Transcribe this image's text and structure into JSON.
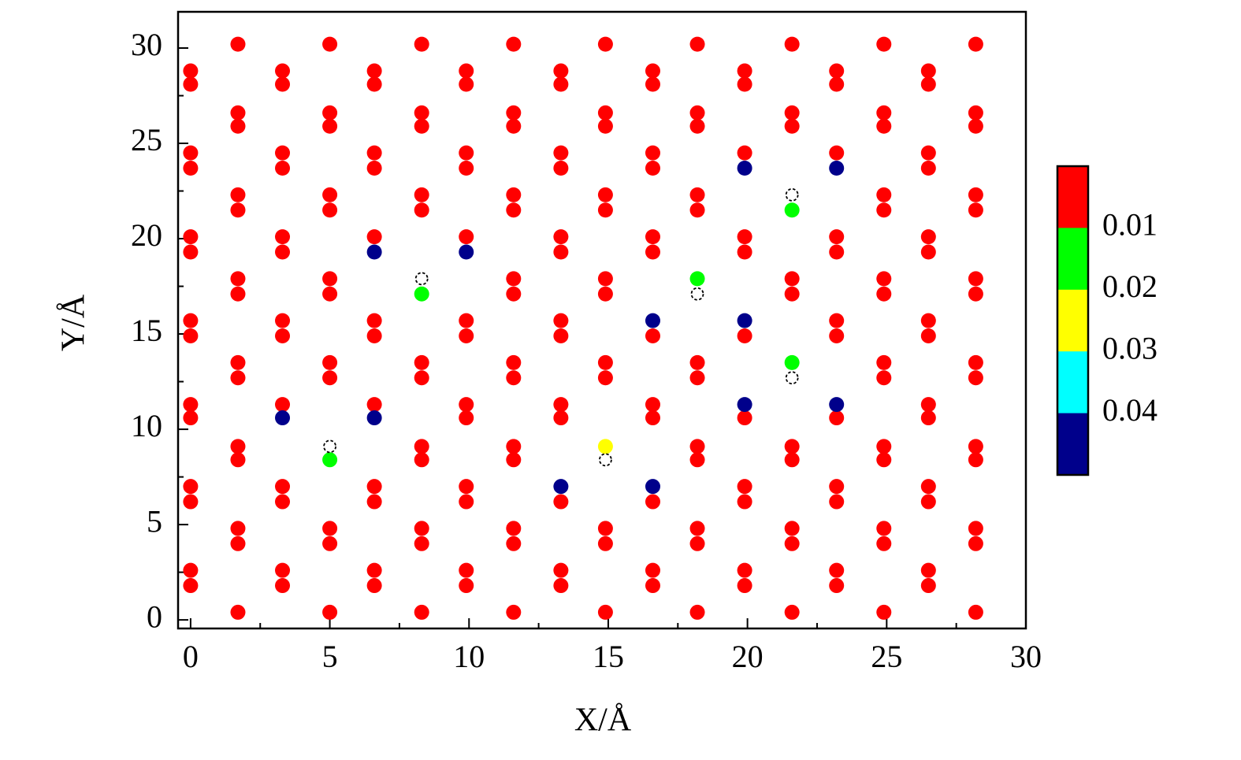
{
  "chart_data": {
    "type": "scatter",
    "xlabel": "X/Å",
    "ylabel": "Y/Å",
    "xlim": [
      -0.45,
      30
    ],
    "ylim": [
      -0.45,
      31.9
    ],
    "xticks": [
      0,
      5,
      10,
      15,
      20,
      25,
      30
    ],
    "yticks": [
      0,
      5,
      10,
      15,
      20,
      25,
      30
    ],
    "xminorticks": [
      2.5,
      7.5,
      12.5,
      17.5,
      22.5,
      27.5
    ],
    "yminorticks": [
      2.5,
      7.5,
      12.5,
      17.5,
      22.5,
      27.5
    ],
    "colorbar": {
      "lim": [
        0,
        0.05
      ],
      "ticks": [
        0.01,
        0.02,
        0.03,
        0.04
      ],
      "colors": [
        "#ff0000",
        "#00ff00",
        "#ffff00",
        "#00ffff",
        "#00008b"
      ]
    },
    "series": [
      {
        "color": "#ff0000",
        "marker": "filled",
        "x": [
          0,
          0,
          0,
          0,
          0,
          0,
          0,
          0,
          0,
          0,
          0,
          0,
          0,
          0,
          1.7,
          1.7,
          1.7,
          1.7,
          1.7,
          1.7,
          1.7,
          1.7,
          1.7,
          1.7,
          1.7,
          1.7,
          1.7,
          1.7,
          3.3,
          3.3,
          3.3,
          3.3,
          3.3,
          3.3,
          3.3,
          3.3,
          3.3,
          3.3,
          3.3,
          3.3,
          3.3,
          5.0,
          5.0,
          5.0,
          5.0,
          5.0,
          5.0,
          5.0,
          5.0,
          5.0,
          5.0,
          5.0,
          5.0,
          6.6,
          6.6,
          6.6,
          6.6,
          6.6,
          6.6,
          6.6,
          6.6,
          6.6,
          6.6,
          6.6,
          6.6,
          8.3,
          8.3,
          8.3,
          8.3,
          8.3,
          8.3,
          8.3,
          8.3,
          8.3,
          8.3,
          8.3,
          8.3,
          9.9,
          9.9,
          9.9,
          9.9,
          9.9,
          9.9,
          9.9,
          9.9,
          9.9,
          9.9,
          9.9,
          9.9,
          9.9,
          11.6,
          11.6,
          11.6,
          11.6,
          11.6,
          11.6,
          11.6,
          11.6,
          11.6,
          11.6,
          11.6,
          11.6,
          11.6,
          11.6,
          13.3,
          13.3,
          13.3,
          13.3,
          13.3,
          13.3,
          13.3,
          13.3,
          13.3,
          13.3,
          13.3,
          13.3,
          13.3,
          14.9,
          14.9,
          14.9,
          14.9,
          14.9,
          14.9,
          14.9,
          14.9,
          14.9,
          14.9,
          14.9,
          14.9,
          16.6,
          16.6,
          16.6,
          16.6,
          16.6,
          16.6,
          16.6,
          16.6,
          16.6,
          16.6,
          16.6,
          16.6,
          18.2,
          18.2,
          18.2,
          18.2,
          18.2,
          18.2,
          18.2,
          18.2,
          18.2,
          18.2,
          18.2,
          18.2,
          19.9,
          19.9,
          19.9,
          19.9,
          19.9,
          19.9,
          19.9,
          19.9,
          19.9,
          19.9,
          19.9,
          21.6,
          21.6,
          21.6,
          21.6,
          21.6,
          21.6,
          21.6,
          21.6,
          21.6,
          21.6,
          23.2,
          23.2,
          23.2,
          23.2,
          23.2,
          23.2,
          23.2,
          23.2,
          23.2,
          23.2,
          23.2,
          23.2,
          24.9,
          24.9,
          24.9,
          24.9,
          24.9,
          24.9,
          24.9,
          24.9,
          24.9,
          24.9,
          24.9,
          24.9,
          24.9,
          24.9,
          26.5,
          26.5,
          26.5,
          26.5,
          26.5,
          26.5,
          26.5,
          26.5,
          26.5,
          26.5,
          26.5,
          26.5,
          26.5,
          26.5,
          28.2,
          28.2,
          28.2,
          28.2,
          28.2,
          28.2,
          28.2,
          28.2,
          28.2,
          28.2,
          28.2,
          28.2,
          28.2,
          28.2
        ],
        "y": [
          28.8,
          28.1,
          24.5,
          23.7,
          20.1,
          19.3,
          15.7,
          14.9,
          11.3,
          10.6,
          7.0,
          6.2,
          2.6,
          1.8,
          30.2,
          26.6,
          25.9,
          22.3,
          21.5,
          17.9,
          17.1,
          13.5,
          12.7,
          9.1,
          8.4,
          4.8,
          4.0,
          0.4,
          28.8,
          28.1,
          24.5,
          23.7,
          20.1,
          19.3,
          15.7,
          14.9,
          11.3,
          7.0,
          6.2,
          2.6,
          1.8,
          30.2,
          26.6,
          25.9,
          22.3,
          21.5,
          17.9,
          17.1,
          13.5,
          12.7,
          4.8,
          4.0,
          0.4,
          28.8,
          28.1,
          24.5,
          23.7,
          20.1,
          15.7,
          14.9,
          11.3,
          7.0,
          6.2,
          2.6,
          1.8,
          30.2,
          26.6,
          25.9,
          22.3,
          21.5,
          13.5,
          12.7,
          9.1,
          8.4,
          4.8,
          4.0,
          0.4,
          28.8,
          28.1,
          24.5,
          23.7,
          20.1,
          15.7,
          14.9,
          11.3,
          10.6,
          7.0,
          6.2,
          2.6,
          1.8,
          30.2,
          26.6,
          25.9,
          22.3,
          21.5,
          17.9,
          17.1,
          13.5,
          12.7,
          9.1,
          8.4,
          4.8,
          4.0,
          0.4,
          28.8,
          28.1,
          24.5,
          23.7,
          20.1,
          19.3,
          15.7,
          14.9,
          11.3,
          10.6,
          6.2,
          2.6,
          1.8,
          30.2,
          26.6,
          25.9,
          22.3,
          21.5,
          17.9,
          17.1,
          13.5,
          12.7,
          4.8,
          4.0,
          0.4,
          28.8,
          28.1,
          24.5,
          23.7,
          20.1,
          19.3,
          14.9,
          11.3,
          10.6,
          6.2,
          2.6,
          1.8,
          30.2,
          26.6,
          25.9,
          22.3,
          21.5,
          13.5,
          12.7,
          9.1,
          8.4,
          4.8,
          4.0,
          0.4,
          28.8,
          28.1,
          24.5,
          20.1,
          19.3,
          14.9,
          10.6,
          7.0,
          6.2,
          2.6,
          1.8,
          30.2,
          26.6,
          25.9,
          17.9,
          17.1,
          9.1,
          8.4,
          4.8,
          4.0,
          0.4,
          28.8,
          28.1,
          24.5,
          20.1,
          19.3,
          15.7,
          14.9,
          10.6,
          7.0,
          6.2,
          2.6,
          1.8,
          30.2,
          26.6,
          25.9,
          22.3,
          21.5,
          17.9,
          17.1,
          13.5,
          12.7,
          9.1,
          8.4,
          4.8,
          4.0,
          0.4,
          28.8,
          28.1,
          24.5,
          23.7,
          20.1,
          19.3,
          15.7,
          14.9,
          11.3,
          10.6,
          7.0,
          6.2,
          2.6,
          1.8,
          30.2,
          26.6,
          25.9,
          22.3,
          21.5,
          17.9,
          17.1,
          13.5,
          12.7,
          9.1,
          8.4,
          4.8,
          4.0,
          0.4
        ]
      },
      {
        "color": "#00008b",
        "marker": "filled",
        "x": [
          19.9,
          23.2,
          6.6,
          9.9,
          16.6,
          19.9,
          3.3,
          6.6,
          19.9,
          23.2,
          13.3,
          16.6
        ],
        "y": [
          23.7,
          23.7,
          19.3,
          19.3,
          15.7,
          15.7,
          10.6,
          10.6,
          11.3,
          11.3,
          7.0,
          7.0
        ]
      },
      {
        "color": "#00ff00",
        "marker": "filled",
        "x": [
          21.6,
          8.3,
          18.2,
          21.6,
          5.0
        ],
        "y": [
          21.5,
          17.1,
          17.9,
          13.5,
          8.4
        ]
      },
      {
        "color": "#ffff00",
        "marker": "filled",
        "x": [
          14.9
        ],
        "y": [
          9.1
        ]
      },
      {
        "color": "#000000",
        "marker": "dashed-circle",
        "x": [
          21.6,
          8.3,
          18.2,
          21.6,
          5.0,
          14.9
        ],
        "y": [
          22.3,
          17.9,
          17.1,
          12.7,
          9.1,
          8.4
        ]
      }
    ]
  }
}
